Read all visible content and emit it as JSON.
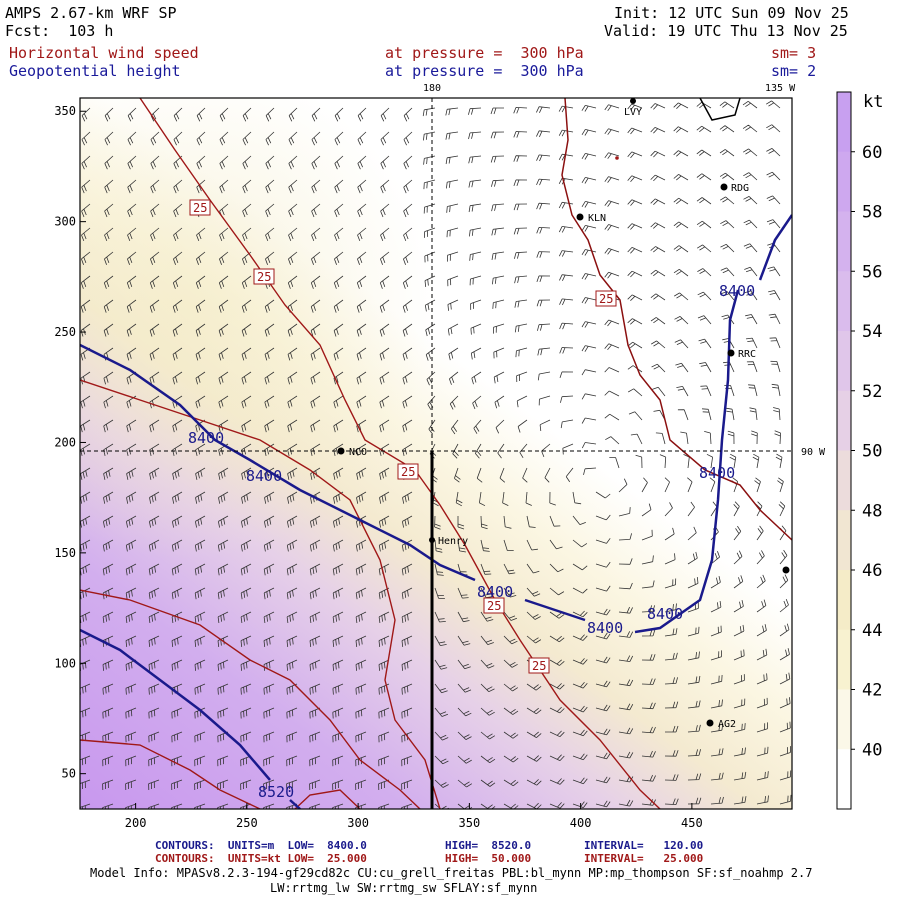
{
  "header": {
    "model": "AMPS 2.67-km WRF SP",
    "init": "Init: 12 UTC Sun 09 Nov 25",
    "fcst": "Fcst:  103 h",
    "valid": "Valid: 19 UTC Thu 13 Nov 25",
    "field1": "Horizontal wind speed",
    "field1_level": "at pressure =  300 hPa",
    "field1_sm": "sm= 3",
    "field2": "Geopotential height",
    "field2_level": "at pressure =  300 hPa",
    "field2_sm": "sm= 2"
  },
  "map_labels": {
    "lon_180": "180",
    "lon_135w": "135 W",
    "lon_90w": "90 W",
    "stations": [
      "LVY",
      "RDG",
      "KLN",
      "RRC",
      "NCO",
      "Henry",
      "AG2"
    ],
    "height_contours": [
      "8400",
      "8400",
      "8400",
      "8400",
      "8400",
      "8400",
      "8400",
      "8520"
    ],
    "speed_contours": [
      "25",
      "25",
      "25",
      "25",
      "25",
      "25",
      "25"
    ]
  },
  "axes": {
    "x_ticks": [
      200,
      250,
      300,
      350,
      400,
      450
    ],
    "y_ticks": [
      50,
      100,
      150,
      200,
      250,
      300,
      350
    ],
    "xlim": [
      175,
      495
    ],
    "ylim": [
      34,
      356
    ]
  },
  "colorbar": {
    "unit": "kt",
    "labels": [
      "60",
      "58",
      "56",
      "54",
      "52",
      "50",
      "48",
      "46",
      "44",
      "42",
      "40"
    ],
    "colors": [
      "#c8a0f0",
      "#cea8ef",
      "#d4b2ee",
      "#dabced",
      "#e0c6ea",
      "#e6d0e6",
      "#ecdcdc",
      "#f1e6d2",
      "#f5ecc8",
      "#f8f2d0",
      "#fbf8e8",
      "#ffffff"
    ]
  },
  "footer": {
    "line1_a": "CONTOURS:  UNITS=m  LOW=  8400.0",
    "line1_b": "HIGH=  8520.0",
    "line1_c": "INTERVAL=   120.00",
    "line2_a": "CONTOURS:  UNITS=kt LOW=  25.000",
    "line2_b": "HIGH=  50.000",
    "line2_c": "INTERVAL=   25.000",
    "model_info": "Model Info: MPASv8.2.3-194-gf29cd82c CU:cu_grell_freitas PBL:bl_mynn MP:mp_thompson SF:sf_noahmp 2.7",
    "model_info2": "LW:rrtmg_lw SW:rrtmg_sw SFLAY:sf_mynn"
  },
  "colors": {
    "height_contour": "#1a1a8c",
    "speed_contour": "#a01818",
    "coast": "#8b1010"
  }
}
